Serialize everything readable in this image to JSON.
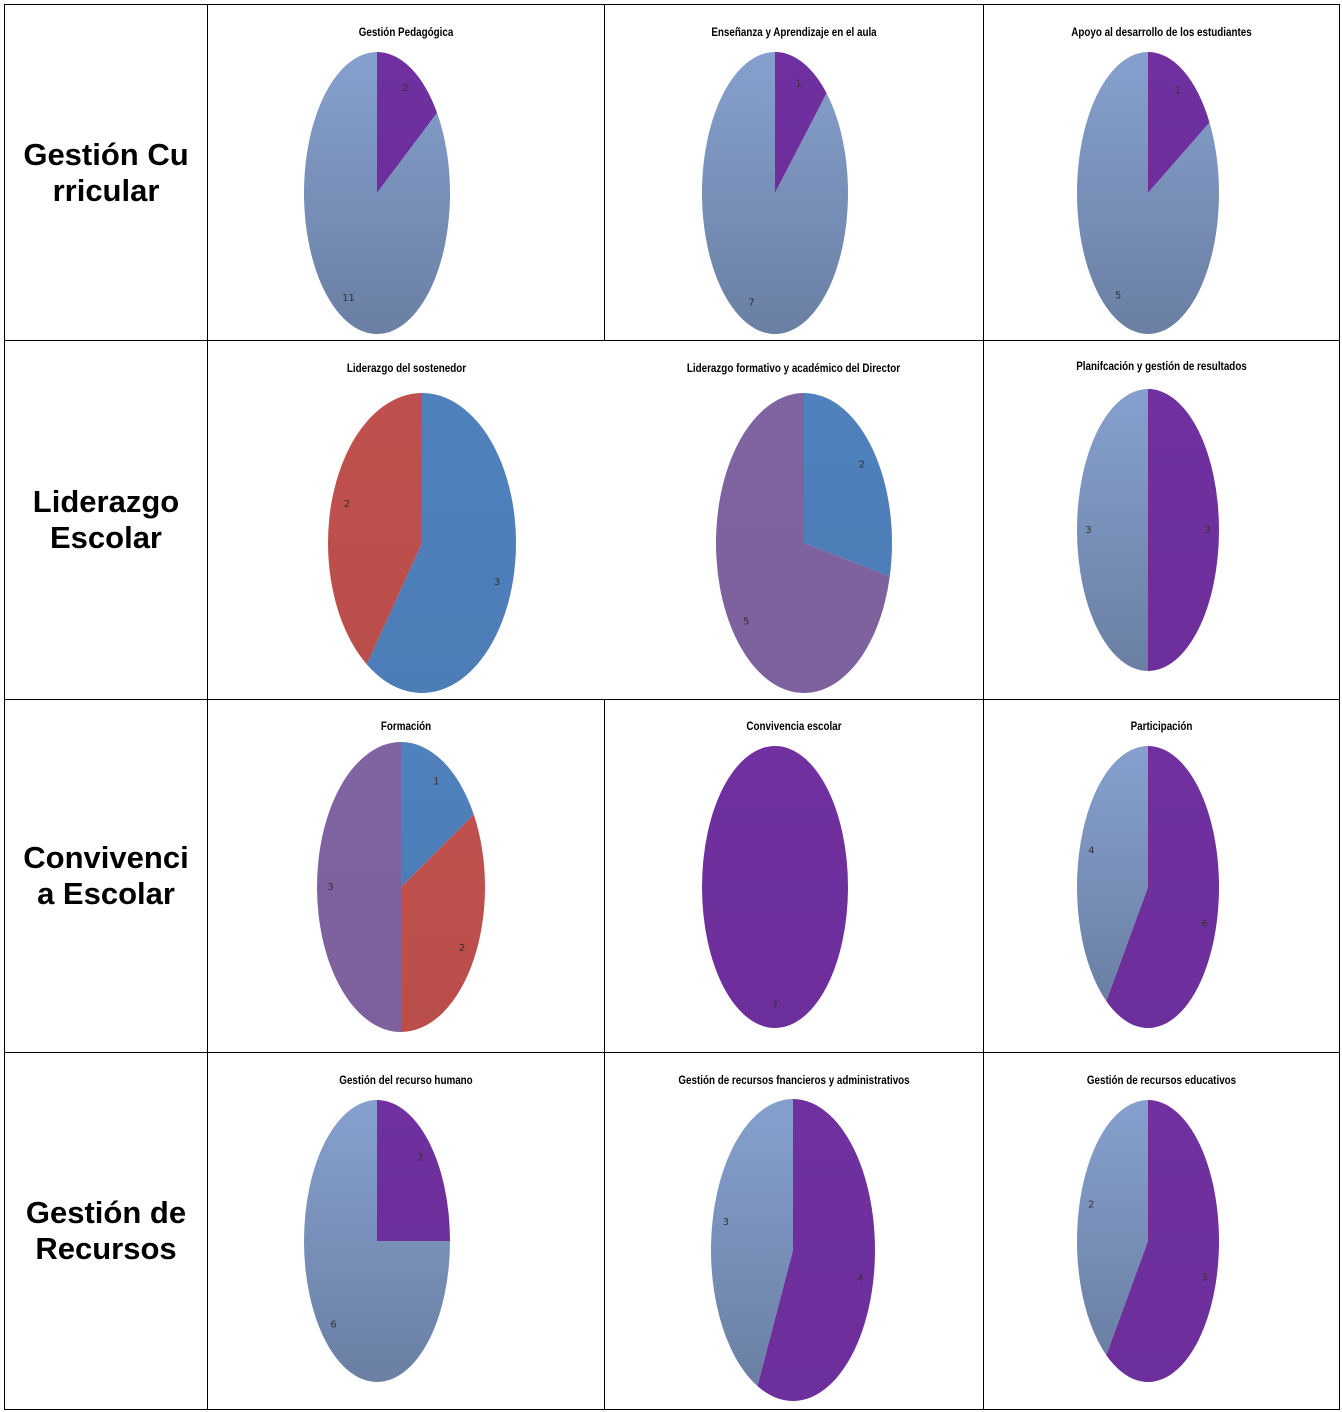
{
  "rows": [
    {
      "label": "Gestión Curricular"
    },
    {
      "label": "Liderazgo Escolar"
    },
    {
      "label": "Convivencia Escolar"
    },
    {
      "label": "Gestión de Recursos"
    }
  ],
  "colors": {
    "purple": "#7030A0",
    "grayblue": "#7B92BA",
    "blue": "#4F81BD",
    "red": "#C0504D",
    "violet": "#8064A2"
  },
  "chart_data": [
    {
      "type": "pie",
      "title": "Gestión Pedagógica",
      "slices": [
        {
          "value": 2,
          "color": "purple"
        },
        {
          "value": 11,
          "color": "grayblue"
        }
      ]
    },
    {
      "type": "pie",
      "title": "Enseñanza y Aprendizaje en el aula",
      "slices": [
        {
          "value": 1,
          "color": "purple"
        },
        {
          "value": 7,
          "color": "grayblue"
        }
      ]
    },
    {
      "type": "pie",
      "title": "Apoyo al desarrollo de los estudiantes",
      "slices": [
        {
          "value": 1,
          "color": "purple"
        },
        {
          "value": 5,
          "color": "grayblue"
        }
      ]
    },
    {
      "type": "pie",
      "title": "Liderazgo del sostenedor",
      "slices": [
        {
          "value": 3,
          "color": "blue"
        },
        {
          "value": 2,
          "color": "red"
        }
      ]
    },
    {
      "type": "pie",
      "title": "Liderazgo formativo y académico del Director",
      "slices": [
        {
          "value": 2,
          "color": "blue"
        },
        {
          "value": 5,
          "color": "violet"
        }
      ]
    },
    {
      "type": "pie",
      "title": "Planifcación y gestión de resultados",
      "slices": [
        {
          "value": 3,
          "color": "purple"
        },
        {
          "value": 3,
          "color": "grayblue"
        }
      ]
    },
    {
      "type": "pie",
      "title": "Formación",
      "slices": [
        {
          "value": 1,
          "color": "blue"
        },
        {
          "value": 2,
          "color": "red"
        },
        {
          "value": 3,
          "color": "violet"
        }
      ]
    },
    {
      "type": "pie",
      "title": "Convivencia escolar",
      "slices": [
        {
          "value": 7,
          "color": "purple"
        }
      ]
    },
    {
      "type": "pie",
      "title": "Participación",
      "slices": [
        {
          "value": 6,
          "color": "purple"
        },
        {
          "value": 4,
          "color": "grayblue"
        }
      ]
    },
    {
      "type": "pie",
      "title": "Gestión del recurso humano",
      "slices": [
        {
          "value": 2,
          "color": "purple"
        },
        {
          "value": 6,
          "color": "grayblue"
        }
      ]
    },
    {
      "type": "pie",
      "title": "Gestión de recursos fnancieros y administrativos",
      "slices": [
        {
          "value": 4,
          "color": "purple"
        },
        {
          "value": 3,
          "color": "grayblue"
        }
      ]
    },
    {
      "type": "pie",
      "title": "Gestión de recursos educativos",
      "slices": [
        {
          "value": 3,
          "color": "purple"
        },
        {
          "value": 2,
          "color": "grayblue"
        }
      ]
    }
  ]
}
